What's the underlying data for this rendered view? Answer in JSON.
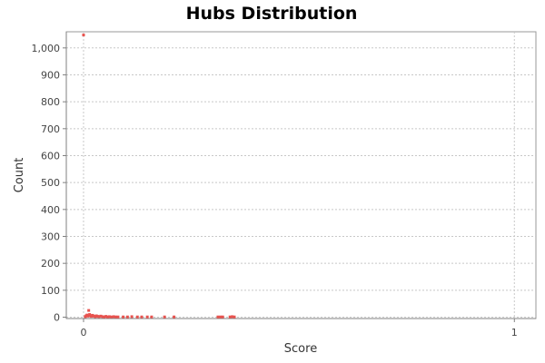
{
  "chart_data": {
    "type": "scatter",
    "title": "Hubs Distribution",
    "xlabel": "Score",
    "ylabel": "Count",
    "xlim": [
      -0.04,
      1.05
    ],
    "ylim": [
      -5,
      1060
    ],
    "x_ticks": [
      0,
      1
    ],
    "x_tick_labels": [
      "0",
      "1"
    ],
    "y_ticks": [
      0,
      100,
      200,
      300,
      400,
      500,
      600,
      700,
      800,
      900,
      1000
    ],
    "y_tick_labels": [
      "0",
      "100",
      "200",
      "300",
      "400",
      "500",
      "600",
      "700",
      "800",
      "900",
      "1,000"
    ],
    "grid": true,
    "legend": "none",
    "point_color": "#e8534f",
    "points": [
      {
        "x": 0.0,
        "y": 1048
      },
      {
        "x": 0.004,
        "y": 2
      },
      {
        "x": 0.006,
        "y": 5
      },
      {
        "x": 0.008,
        "y": 8
      },
      {
        "x": 0.01,
        "y": 4
      },
      {
        "x": 0.012,
        "y": 25
      },
      {
        "x": 0.014,
        "y": 10
      },
      {
        "x": 0.016,
        "y": 6
      },
      {
        "x": 0.018,
        "y": 3
      },
      {
        "x": 0.021,
        "y": 7
      },
      {
        "x": 0.024,
        "y": 4
      },
      {
        "x": 0.027,
        "y": 2
      },
      {
        "x": 0.03,
        "y": 5
      },
      {
        "x": 0.033,
        "y": 3
      },
      {
        "x": 0.036,
        "y": 2
      },
      {
        "x": 0.04,
        "y": 4
      },
      {
        "x": 0.044,
        "y": 2
      },
      {
        "x": 0.048,
        "y": 1
      },
      {
        "x": 0.052,
        "y": 3
      },
      {
        "x": 0.056,
        "y": 1
      },
      {
        "x": 0.06,
        "y": 2
      },
      {
        "x": 0.065,
        "y": 1
      },
      {
        "x": 0.07,
        "y": 2
      },
      {
        "x": 0.075,
        "y": 1
      },
      {
        "x": 0.08,
        "y": 1
      },
      {
        "x": 0.092,
        "y": 1
      },
      {
        "x": 0.102,
        "y": 1
      },
      {
        "x": 0.112,
        "y": 2
      },
      {
        "x": 0.125,
        "y": 1
      },
      {
        "x": 0.135,
        "y": 1
      },
      {
        "x": 0.148,
        "y": 1
      },
      {
        "x": 0.158,
        "y": 1
      },
      {
        "x": 0.188,
        "y": 1
      },
      {
        "x": 0.21,
        "y": 1
      },
      {
        "x": 0.312,
        "y": 1
      },
      {
        "x": 0.318,
        "y": 1
      },
      {
        "x": 0.323,
        "y": 1
      },
      {
        "x": 0.34,
        "y": 1
      },
      {
        "x": 0.345,
        "y": 2
      },
      {
        "x": 0.35,
        "y": 1
      }
    ]
  }
}
